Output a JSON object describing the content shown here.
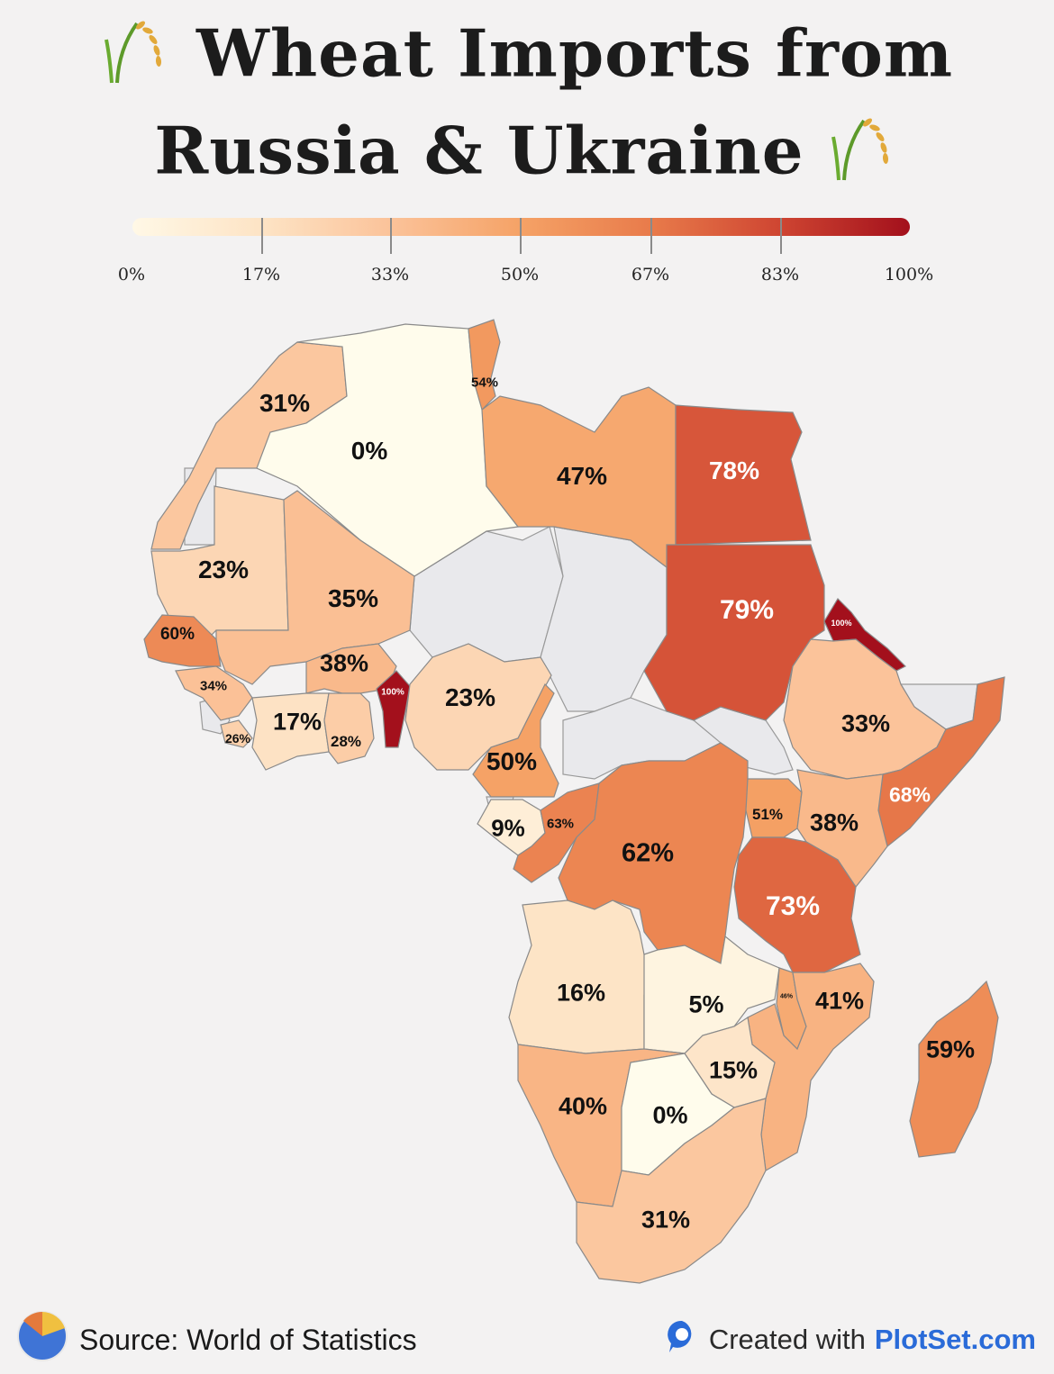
{
  "title_line1": "Wheat Imports from",
  "title_line2": "Russia & Ukraine",
  "scale": {
    "labels": [
      "0%",
      "17%",
      "33%",
      "50%",
      "67%",
      "83%",
      "100%"
    ]
  },
  "map_data": {
    "type": "choropleth",
    "region": "Africa",
    "values": [
      {
        "country": "Morocco",
        "label": "31%",
        "value": 31
      },
      {
        "country": "Algeria",
        "label": "0%",
        "value": 0
      },
      {
        "country": "Tunisia",
        "label": "54%",
        "value": 54
      },
      {
        "country": "Libya",
        "label": "47%",
        "value": 47
      },
      {
        "country": "Egypt",
        "label": "78%",
        "value": 78
      },
      {
        "country": "Mauritania",
        "label": "23%",
        "value": 23
      },
      {
        "country": "Mali",
        "label": "35%",
        "value": 35
      },
      {
        "country": "Senegal",
        "label": "60%",
        "value": 60
      },
      {
        "country": "Burkina Faso",
        "label": "38%",
        "value": 38
      },
      {
        "country": "Guinea",
        "label": "34%",
        "value": 34
      },
      {
        "country": "Sierra Leone",
        "label": "26%",
        "value": 26
      },
      {
        "country": "Cote d'Ivoire",
        "label": "17%",
        "value": 17
      },
      {
        "country": "Ghana",
        "label": "28%",
        "value": 28
      },
      {
        "country": "Benin",
        "label": "100%",
        "value": 100
      },
      {
        "country": "Nigeria",
        "label": "23%",
        "value": 23
      },
      {
        "country": "Cameroon",
        "label": "50%",
        "value": 50
      },
      {
        "country": "Sudan",
        "label": "79%",
        "value": 79
      },
      {
        "country": "Eritrea",
        "label": "100%",
        "value": 100
      },
      {
        "country": "Ethiopia",
        "label": "33%",
        "value": 33
      },
      {
        "country": "Somalia",
        "label": "68%",
        "value": 68
      },
      {
        "country": "Gabon",
        "label": "9%",
        "value": 9
      },
      {
        "country": "Republic of the Congo",
        "label": "63%",
        "value": 63
      },
      {
        "country": "DR Congo",
        "label": "62%",
        "value": 62
      },
      {
        "country": "Uganda",
        "label": "51%",
        "value": 51
      },
      {
        "country": "Kenya",
        "label": "38%",
        "value": 38
      },
      {
        "country": "Tanzania",
        "label": "73%",
        "value": 73
      },
      {
        "country": "Angola",
        "label": "16%",
        "value": 16
      },
      {
        "country": "Zambia",
        "label": "5%",
        "value": 5
      },
      {
        "country": "Malawi",
        "label": "46%",
        "value": 46
      },
      {
        "country": "Mozambique",
        "label": "41%",
        "value": 41
      },
      {
        "country": "Madagascar",
        "label": "59%",
        "value": 59
      },
      {
        "country": "Zimbabwe",
        "label": "15%",
        "value": 15
      },
      {
        "country": "Namibia",
        "label": "40%",
        "value": 40
      },
      {
        "country": "Botswana",
        "label": "0%",
        "value": 0
      },
      {
        "country": "South Africa",
        "label": "31%",
        "value": 31
      }
    ],
    "no_data_color": "#e9e9ec"
  },
  "footer": {
    "source": "Source: World of Statistics",
    "credit_prefix": "Created with ",
    "credit_brand": "PlotSet.com"
  }
}
